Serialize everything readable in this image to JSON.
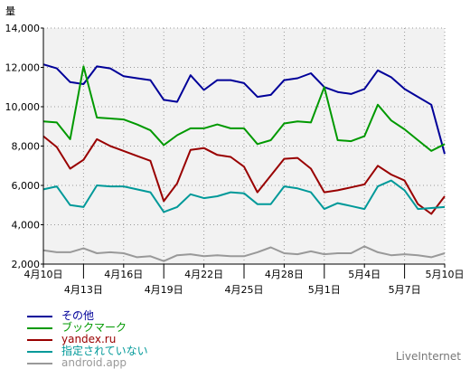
{
  "chart_data": {
    "type": "line",
    "ylabel": "量",
    "ylim": [
      2000,
      14000
    ],
    "yticks": [
      "2,000",
      "4,000",
      "6,000",
      "8,000",
      "10,000",
      "12,000",
      "14,000"
    ],
    "ytick_values": [
      2000,
      4000,
      6000,
      8000,
      10000,
      12000,
      14000
    ],
    "x_count": 31,
    "xticks": [
      {
        "index": 0,
        "label": "4月10日",
        "row": 0
      },
      {
        "index": 3,
        "label": "4月13日",
        "row": 1
      },
      {
        "index": 6,
        "label": "4月16日",
        "row": 0
      },
      {
        "index": 9,
        "label": "4月19日",
        "row": 1
      },
      {
        "index": 12,
        "label": "4月22日",
        "row": 0
      },
      {
        "index": 15,
        "label": "4月25日",
        "row": 1
      },
      {
        "index": 18,
        "label": "4月28日",
        "row": 0
      },
      {
        "index": 21,
        "label": "5月1日",
        "row": 1
      },
      {
        "index": 24,
        "label": "5月4日",
        "row": 0
      },
      {
        "index": 27,
        "label": "5月7日",
        "row": 1
      },
      {
        "index": 30,
        "label": "5月10日",
        "row": 0
      }
    ],
    "grid": true,
    "series": [
      {
        "name": "その他",
        "color": "#000099",
        "values": [
          12150,
          11950,
          11250,
          11150,
          12050,
          11950,
          11550,
          11450,
          11350,
          10350,
          10250,
          11600,
          10850,
          11350,
          11350,
          11200,
          10500,
          10600,
          11350,
          11450,
          11700,
          11000,
          10750,
          10650,
          10900,
          11850,
          11500,
          10900,
          10500,
          10100,
          7600
        ]
      },
      {
        "name": "ブックマーク",
        "color": "#009900",
        "values": [
          9250,
          9200,
          8350,
          12050,
          9450,
          9400,
          9350,
          9100,
          8800,
          8050,
          8550,
          8900,
          8900,
          9100,
          8900,
          8900,
          8100,
          8300,
          9150,
          9250,
          9200,
          11000,
          8300,
          8250,
          8500,
          10100,
          9300,
          8850,
          8300,
          7750,
          8100
        ]
      },
      {
        "name": "yandex.ru",
        "color": "#990000",
        "values": [
          8500,
          7950,
          6850,
          7300,
          8350,
          8000,
          7750,
          7500,
          7250,
          5200,
          6100,
          7800,
          7900,
          7550,
          7450,
          6950,
          5650,
          6500,
          7350,
          7400,
          6850,
          5650,
          5750,
          5900,
          6050,
          7000,
          6550,
          6250,
          5050,
          4550,
          5450
        ]
      },
      {
        "name": "指定されていない",
        "color": "#009999",
        "values": [
          5800,
          5950,
          5000,
          4900,
          6000,
          5950,
          5950,
          5800,
          5650,
          4650,
          4900,
          5550,
          5350,
          5450,
          5650,
          5600,
          5050,
          5050,
          5950,
          5850,
          5650,
          4800,
          5100,
          4950,
          4800,
          5950,
          6250,
          5750,
          4800,
          4850,
          4900
        ]
      },
      {
        "name": "android.app",
        "color": "#999999",
        "values": [
          2700,
          2600,
          2600,
          2800,
          2550,
          2600,
          2550,
          2350,
          2400,
          2150,
          2450,
          2500,
          2400,
          2450,
          2400,
          2400,
          2600,
          2850,
          2550,
          2500,
          2650,
          2500,
          2550,
          2550,
          2900,
          2600,
          2450,
          2500,
          2450,
          2350,
          2550
        ]
      }
    ]
  },
  "brand": "LiveInternet"
}
